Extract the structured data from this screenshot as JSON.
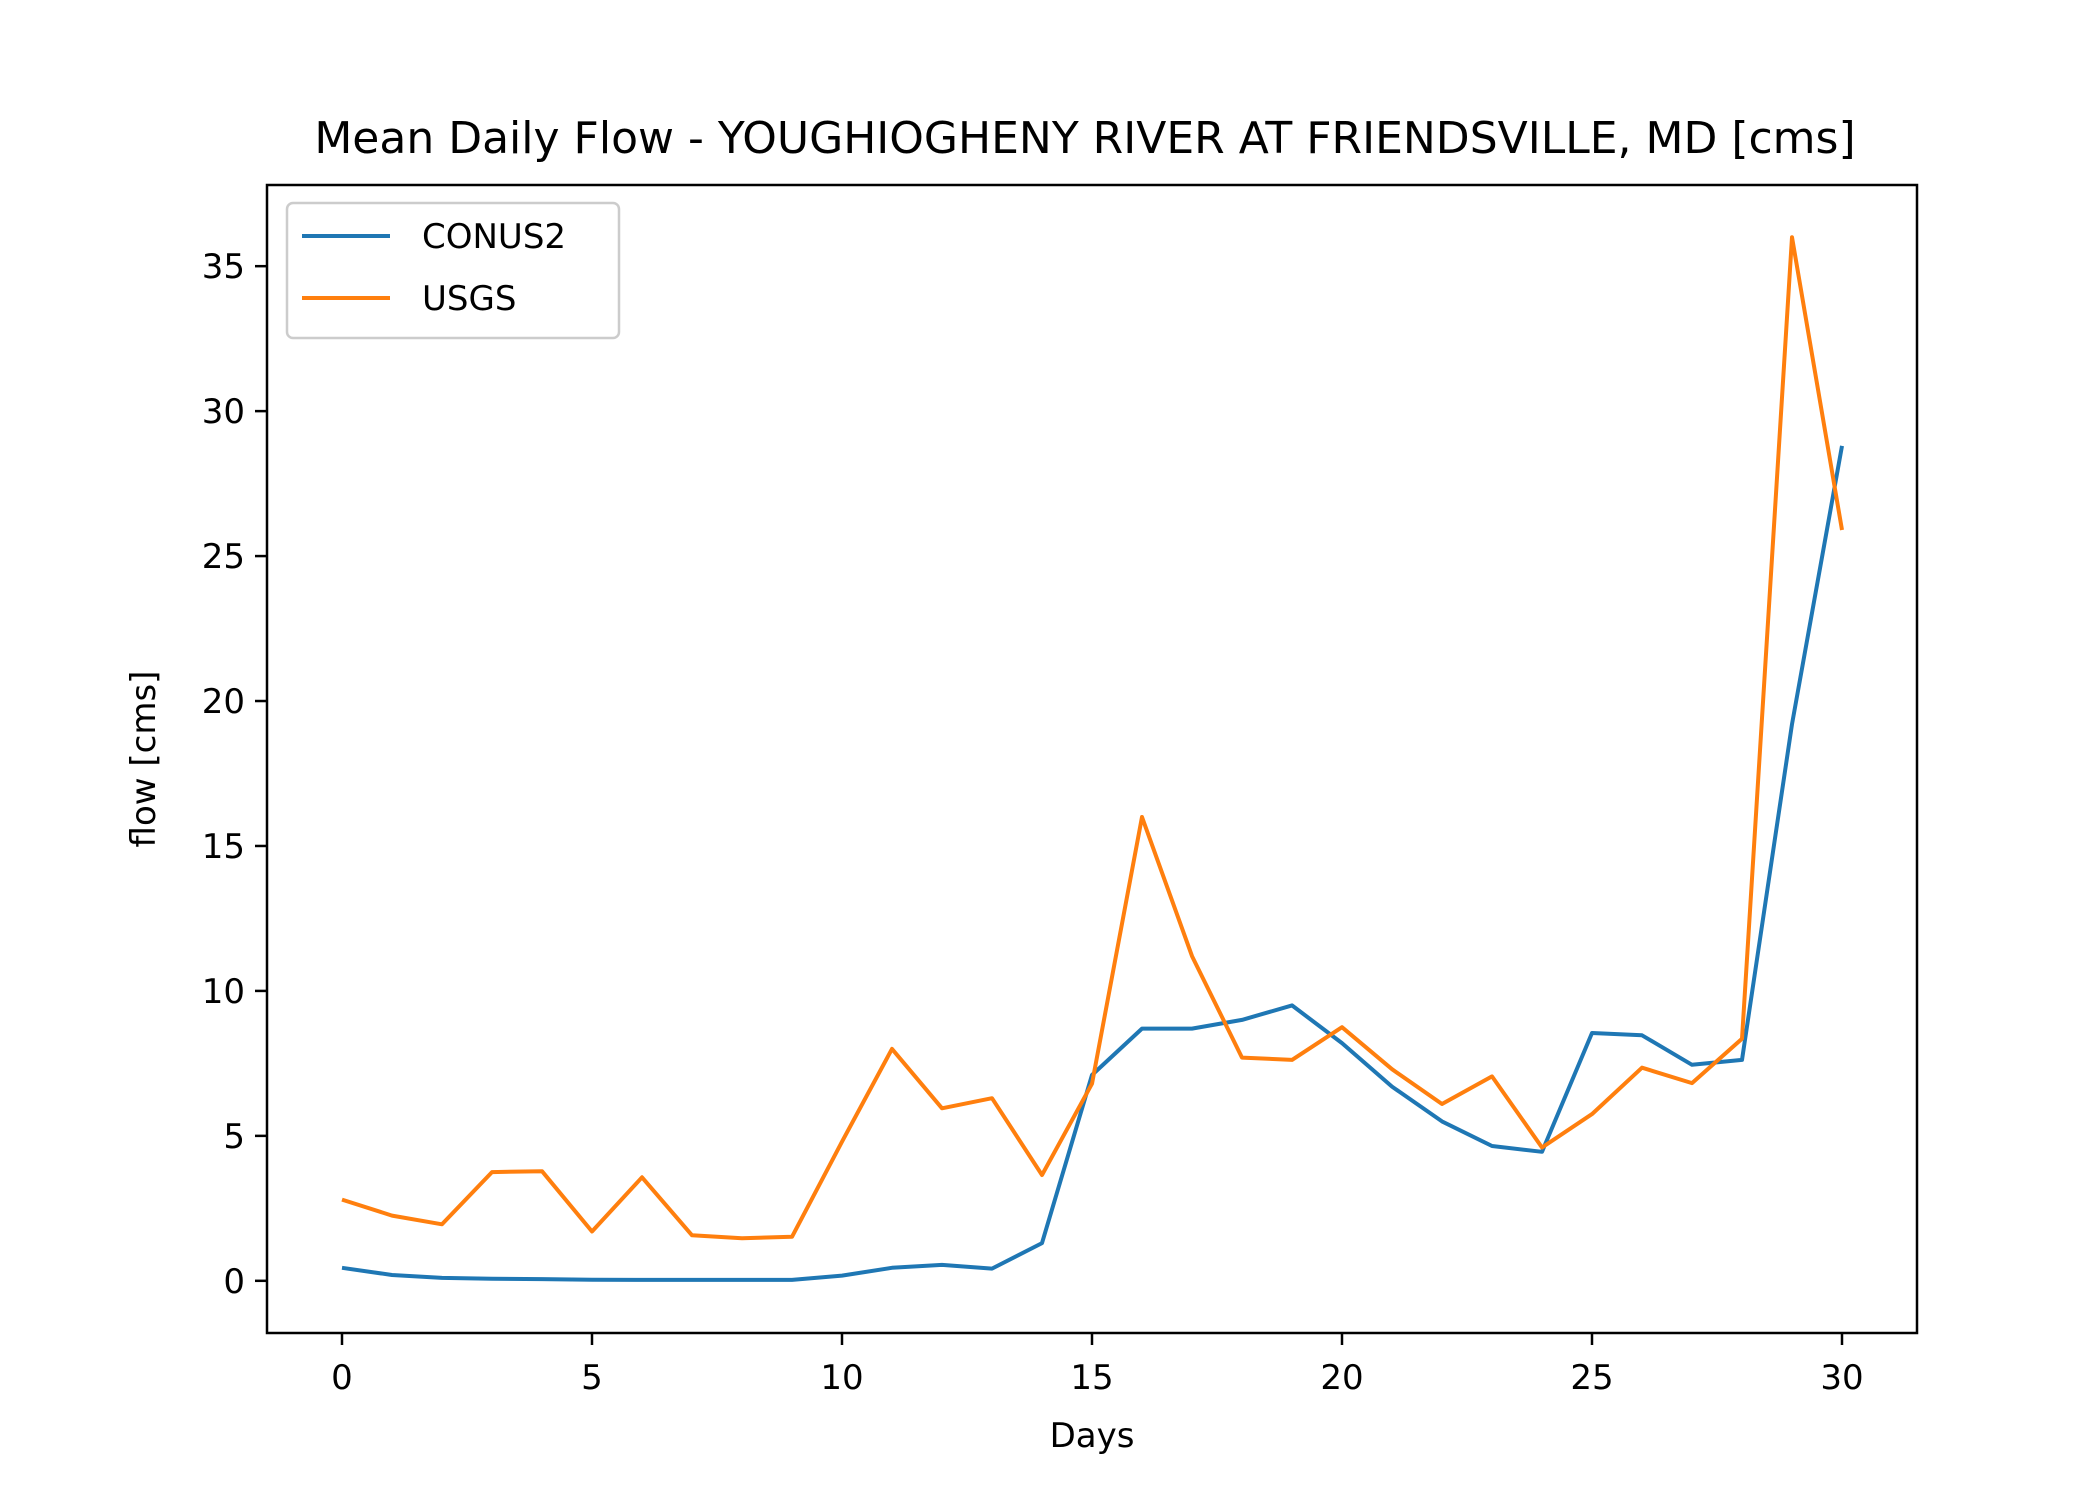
{
  "chart_data": {
    "type": "line",
    "title": "Mean Daily Flow - YOUGHIOGHENY RIVER AT FRIENDSVILLE, MD [cms]",
    "xlabel": "Days",
    "ylabel": "flow [cms]",
    "xlim": [
      -1.5,
      31.5
    ],
    "ylim": [
      -1.8,
      37.8
    ],
    "xticks": [
      0,
      5,
      10,
      15,
      20,
      25,
      30
    ],
    "yticks": [
      0,
      5,
      10,
      15,
      20,
      25,
      30,
      35
    ],
    "grid": false,
    "legend_position": "top-left",
    "x": [
      0,
      1,
      2,
      3,
      4,
      5,
      6,
      7,
      8,
      9,
      10,
      11,
      12,
      13,
      14,
      15,
      16,
      17,
      18,
      19,
      20,
      21,
      22,
      23,
      24,
      25,
      26,
      27,
      28,
      29,
      30
    ],
    "series": [
      {
        "name": "CONUS2",
        "color": "#1f77b4",
        "values": [
          0.45,
          0.2,
          0.1,
          0.07,
          0.06,
          0.04,
          0.03,
          0.03,
          0.03,
          0.03,
          0.18,
          0.45,
          0.55,
          0.42,
          1.3,
          7.1,
          8.7,
          8.7,
          9.0,
          9.5,
          8.2,
          6.7,
          5.5,
          4.65,
          4.45,
          8.55,
          8.47,
          7.45,
          7.62,
          19.2,
          28.8
        ]
      },
      {
        "name": "USGS",
        "color": "#ff7f0e",
        "values": [
          2.8,
          2.25,
          1.95,
          3.75,
          3.78,
          1.7,
          3.57,
          1.57,
          1.47,
          1.52,
          4.8,
          8.0,
          5.95,
          6.3,
          3.65,
          6.8,
          16.0,
          11.2,
          7.7,
          7.62,
          8.75,
          7.3,
          6.1,
          7.05,
          4.6,
          5.75,
          7.35,
          6.82,
          8.35,
          36.0,
          25.9
        ]
      }
    ]
  }
}
